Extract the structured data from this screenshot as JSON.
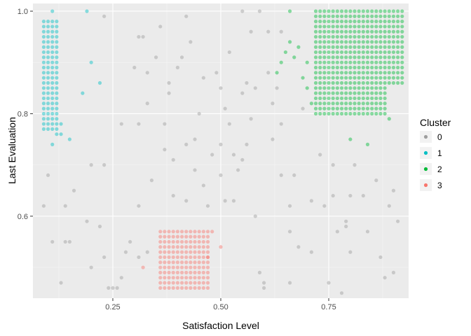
{
  "chart_data": {
    "type": "scatter",
    "xlabel": "Satisfaction Level",
    "ylabel": "Last Evaluation",
    "xlim": [
      0.065,
      0.935
    ],
    "ylim": [
      0.44,
      1.015
    ],
    "xticks": [
      0.25,
      0.5,
      0.75
    ],
    "xtick_labels": [
      "0.25",
      "0.50",
      "0.75"
    ],
    "yticks": [
      0.6,
      0.8,
      1.0
    ],
    "ytick_labels": [
      "0.6",
      "0.8",
      "1.0"
    ],
    "grid": true,
    "legend": {
      "title": "Cluster",
      "position": "right"
    },
    "series": [
      {
        "name": "0",
        "color": "#9e9e9e",
        "grid_blocks": [],
        "points": [
          [
            0.09,
            0.62
          ],
          [
            0.11,
            0.55
          ],
          [
            0.1,
            0.68
          ],
          [
            0.14,
            0.62
          ],
          [
            0.14,
            0.55
          ],
          [
            0.13,
            0.47
          ],
          [
            0.15,
            0.55
          ],
          [
            0.16,
            0.65
          ],
          [
            0.19,
            0.59
          ],
          [
            0.2,
            0.5
          ],
          [
            0.2,
            0.7
          ],
          [
            0.23,
            0.7
          ],
          [
            0.23,
            0.99
          ],
          [
            0.22,
            0.58
          ],
          [
            0.23,
            0.52
          ],
          [
            0.24,
            0.46
          ],
          [
            0.25,
            0.46
          ],
          [
            0.26,
            0.46
          ],
          [
            0.27,
            0.48
          ],
          [
            0.28,
            0.53
          ],
          [
            0.29,
            0.55
          ],
          [
            0.3,
            0.89
          ],
          [
            0.31,
            0.95
          ],
          [
            0.32,
            0.95
          ],
          [
            0.31,
            0.78
          ],
          [
            0.31,
            0.62
          ],
          [
            0.31,
            0.52
          ],
          [
            0.33,
            0.88
          ],
          [
            0.33,
            0.82
          ],
          [
            0.33,
            0.53
          ],
          [
            0.34,
            0.67
          ],
          [
            0.35,
            0.91
          ],
          [
            0.36,
            0.97
          ],
          [
            0.37,
            0.78
          ],
          [
            0.37,
            0.73
          ],
          [
            0.38,
            0.86
          ],
          [
            0.38,
            0.84
          ],
          [
            0.39,
            0.64
          ],
          [
            0.4,
            0.89
          ],
          [
            0.41,
            0.91
          ],
          [
            0.42,
            0.99
          ],
          [
            0.43,
            0.94
          ],
          [
            0.42,
            0.74
          ],
          [
            0.42,
            0.63
          ],
          [
            0.44,
            0.75
          ],
          [
            0.44,
            0.69
          ],
          [
            0.46,
            0.87
          ],
          [
            0.46,
            0.66
          ],
          [
            0.47,
            0.62
          ],
          [
            0.48,
            0.72
          ],
          [
            0.49,
            0.88
          ],
          [
            0.5,
            0.85
          ],
          [
            0.5,
            0.74
          ],
          [
            0.5,
            0.68
          ],
          [
            0.51,
            0.63
          ],
          [
            0.52,
            0.92
          ],
          [
            0.51,
            0.81
          ],
          [
            0.52,
            0.78
          ],
          [
            0.53,
            0.72
          ],
          [
            0.53,
            0.63
          ],
          [
            0.54,
            0.69
          ],
          [
            0.55,
            0.71
          ],
          [
            0.55,
            0.84
          ],
          [
            0.55,
            1.0
          ],
          [
            0.56,
            0.86
          ],
          [
            0.56,
            0.74
          ],
          [
            0.57,
            0.96
          ],
          [
            0.57,
            0.79
          ],
          [
            0.58,
            0.6
          ],
          [
            0.58,
            0.85
          ],
          [
            0.59,
            1.0
          ],
          [
            0.59,
            0.49
          ],
          [
            0.6,
            0.47
          ],
          [
            0.6,
            0.46
          ],
          [
            0.61,
            0.96
          ],
          [
            0.61,
            0.88
          ],
          [
            0.62,
            0.75
          ],
          [
            0.63,
            0.85
          ],
          [
            0.64,
            0.96
          ],
          [
            0.64,
            0.68
          ],
          [
            0.64,
            0.78
          ],
          [
            0.66,
            0.57
          ],
          [
            0.66,
            0.62
          ],
          [
            0.66,
            0.47
          ],
          [
            0.67,
            0.68
          ],
          [
            0.68,
            0.54
          ],
          [
            0.69,
            0.81
          ],
          [
            0.71,
            0.63
          ],
          [
            0.71,
            0.53
          ],
          [
            0.73,
            0.72
          ],
          [
            0.74,
            0.62
          ],
          [
            0.75,
            0.47
          ],
          [
            0.76,
            0.7
          ],
          [
            0.77,
            0.57
          ],
          [
            0.78,
            0.45
          ],
          [
            0.79,
            0.59
          ],
          [
            0.79,
            0.58
          ],
          [
            0.8,
            0.53
          ],
          [
            0.8,
            0.64
          ],
          [
            0.81,
            0.7
          ],
          [
            0.83,
            0.64
          ],
          [
            0.84,
            0.57
          ],
          [
            0.86,
            0.67
          ],
          [
            0.87,
            0.52
          ],
          [
            0.88,
            0.48
          ],
          [
            0.89,
            0.62
          ],
          [
            0.9,
            0.65
          ],
          [
            0.9,
            0.49
          ],
          [
            0.91,
            0.59
          ],
          [
            0.76,
            0.64
          ],
          [
            0.62,
            0.82
          ],
          [
            0.45,
            0.8
          ],
          [
            0.39,
            0.71
          ],
          [
            0.27,
            0.78
          ]
        ]
      },
      {
        "name": "1",
        "color": "#00bfc4",
        "grid_blocks": [
          {
            "x0": 0.09,
            "x1": 0.12,
            "dx": 0.01,
            "y0": 0.77,
            "y1": 0.98,
            "dy": 0.01
          }
        ],
        "points": [
          [
            0.11,
            1.0
          ],
          [
            0.19,
            1.0
          ],
          [
            0.2,
            0.9
          ],
          [
            0.22,
            0.86
          ],
          [
            0.18,
            0.84
          ],
          [
            0.13,
            0.78
          ],
          [
            0.13,
            0.76
          ],
          [
            0.15,
            0.75
          ],
          [
            0.11,
            0.74
          ],
          [
            0.12,
            0.76
          ]
        ]
      },
      {
        "name": "2",
        "color": "#00ba38",
        "grid_blocks": [
          {
            "x0": 0.72,
            "x1": 0.92,
            "dx": 0.01,
            "y0": 0.86,
            "y1": 1.0,
            "dy": 0.01
          },
          {
            "x0": 0.72,
            "x1": 0.88,
            "dx": 0.01,
            "y0": 0.8,
            "y1": 0.85,
            "dy": 0.01
          }
        ],
        "points": [
          [
            0.66,
            1.0
          ],
          [
            0.64,
            0.9
          ],
          [
            0.65,
            0.92
          ],
          [
            0.66,
            0.94
          ],
          [
            0.67,
            0.91
          ],
          [
            0.68,
            0.93
          ],
          [
            0.7,
            0.9
          ],
          [
            0.63,
            0.88
          ],
          [
            0.8,
            0.75
          ],
          [
            0.84,
            0.74
          ],
          [
            0.89,
            0.79
          ],
          [
            0.71,
            0.82
          ],
          [
            0.69,
            0.87
          ],
          [
            0.7,
            0.85
          ]
        ]
      },
      {
        "name": "3",
        "color": "#f8766d",
        "grid_blocks": [
          {
            "x0": 0.36,
            "x1": 0.47,
            "dx": 0.01,
            "y0": 0.46,
            "y1": 0.57,
            "dy": 0.01
          }
        ],
        "points": [
          [
            0.32,
            0.5
          ],
          [
            0.48,
            0.57
          ],
          [
            0.5,
            0.54
          ],
          [
            0.47,
            0.52
          ]
        ]
      }
    ]
  }
}
